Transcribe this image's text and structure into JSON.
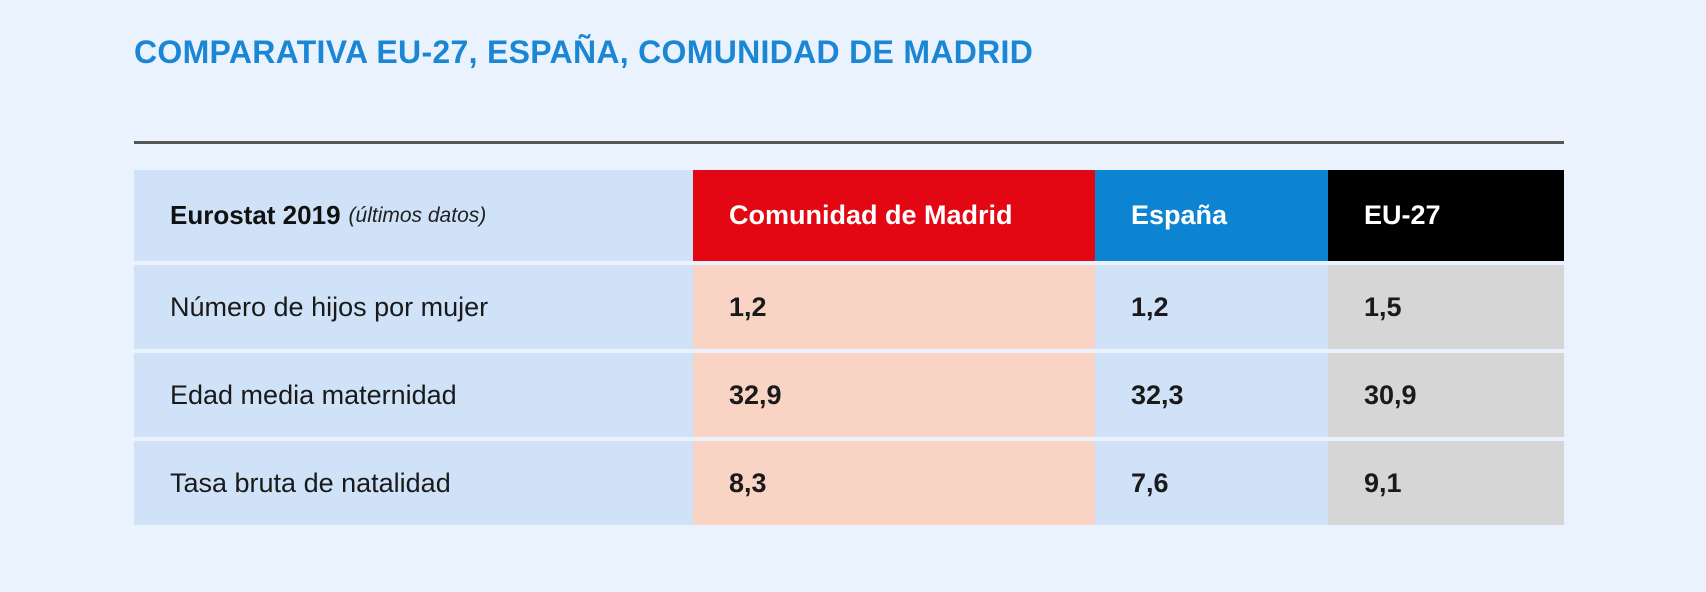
{
  "title": "COMPARATIVA EU-27, ESPAÑA, COMUNIDAD DE MADRID",
  "header": {
    "label": "Eurostat 2019",
    "label_sub": "(últimos datos)",
    "columns": [
      "Comunidad de Madrid",
      "España",
      "EU-27"
    ]
  },
  "rows": [
    {
      "label": "Número de hijos por mujer",
      "values": [
        "1,2",
        "1,2",
        "1,5"
      ]
    },
    {
      "label": "Edad media maternidad",
      "values": [
        "32,9",
        "32,3",
        "30,9"
      ]
    },
    {
      "label": "Tasa bruta de natalidad",
      "values": [
        "8,3",
        "7,6",
        "9,1"
      ]
    }
  ],
  "colors": {
    "title": "#1a86d4",
    "madrid": "#e30613",
    "spain": "#0c84d1",
    "eu": "#000000",
    "madrid_cells": "#f9d4c5",
    "spain_cells": "#cfe2f7",
    "eu_cells": "#d6d6d6",
    "background": "#eaf3fd"
  },
  "chart_data": {
    "type": "table",
    "title": "COMPARATIVA EU-27, ESPAÑA, COMUNIDAD DE MADRID",
    "columns": [
      "Eurostat 2019 (últimos datos)",
      "Comunidad de Madrid",
      "España",
      "EU-27"
    ],
    "rows": [
      [
        "Número de hijos por mujer",
        1.2,
        1.2,
        1.5
      ],
      [
        "Edad media maternidad",
        32.9,
        32.3,
        30.9
      ],
      [
        "Tasa bruta de natalidad",
        8.3,
        7.6,
        9.1
      ]
    ]
  }
}
